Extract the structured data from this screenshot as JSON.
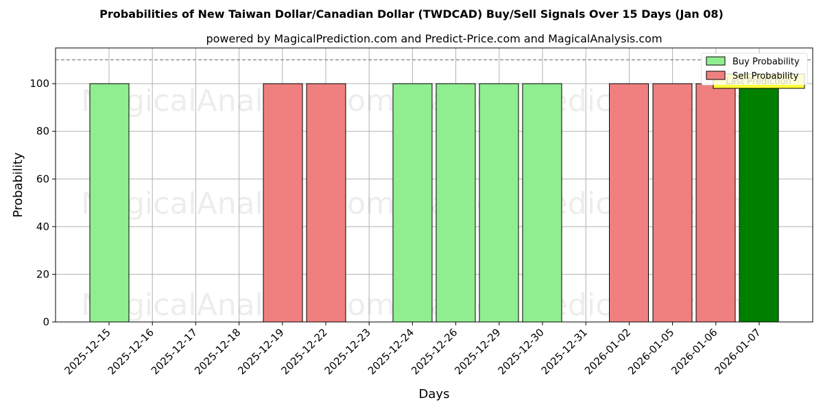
{
  "chart_data": {
    "type": "bar",
    "title": "Probabilities of New Taiwan Dollar/Canadian Dollar (TWDCAD) Buy/Sell Signals Over 15 Days (Jan 08)",
    "subtitle": "powered by MagicalPrediction.com and Predict-Price.com and MagicalAnalysis.com",
    "xlabel": "Days",
    "ylabel": "Probability",
    "ylim": [
      0,
      115
    ],
    "yticks": [
      0,
      20,
      40,
      60,
      80,
      100
    ],
    "reference_line": 110,
    "grid": true,
    "legend_position": "top-right",
    "categories": [
      "2025-12-15",
      "2025-12-16",
      "2025-12-17",
      "2025-12-18",
      "2025-12-19",
      "2025-12-22",
      "2025-12-23",
      "2025-12-24",
      "2025-12-26",
      "2025-12-29",
      "2025-12-30",
      "2025-12-31",
      "2026-01-02",
      "2026-01-05",
      "2026-01-06",
      "2026-01-07"
    ],
    "bars": [
      {
        "category": "2025-12-15",
        "value": 100,
        "signal": "buy"
      },
      {
        "category": "2025-12-19",
        "value": 100,
        "signal": "sell"
      },
      {
        "category": "2025-12-22",
        "value": 100,
        "signal": "sell"
      },
      {
        "category": "2025-12-24",
        "value": 100,
        "signal": "buy"
      },
      {
        "category": "2025-12-26",
        "value": 100,
        "signal": "buy"
      },
      {
        "category": "2025-12-29",
        "value": 100,
        "signal": "buy"
      },
      {
        "category": "2025-12-30",
        "value": 100,
        "signal": "buy"
      },
      {
        "category": "2026-01-02",
        "value": 100,
        "signal": "sell"
      },
      {
        "category": "2026-01-05",
        "value": 100,
        "signal": "sell"
      },
      {
        "category": "2026-01-06",
        "value": 100,
        "signal": "sell"
      },
      {
        "category": "2026-01-07",
        "value": 100,
        "signal": "last"
      }
    ],
    "legend": [
      {
        "label": "Buy Probability",
        "color": "#90ee90"
      },
      {
        "label": "Sell Probability",
        "color": "#f08080"
      },
      {
        "label": "Last Prediction",
        "color": "#ffff33"
      }
    ],
    "colors": {
      "buy": "#90ee90",
      "sell": "#f08080",
      "last": "#008000"
    },
    "watermarks": [
      "MagicalAnalysis.com",
      "MagicalPrediction.com",
      "MagicalAnalysis.com",
      "MagicalPrediction.com",
      "MagicalAnalysis.com",
      "MagicalPrediction.com"
    ]
  }
}
